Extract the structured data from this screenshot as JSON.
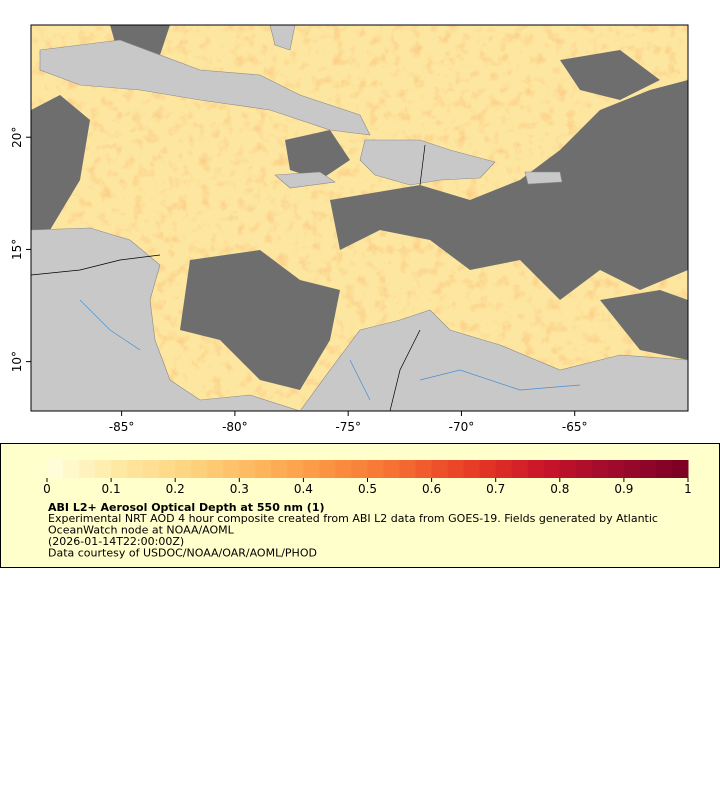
{
  "chart_data": {
    "type": "map",
    "xlim": [
      -89,
      -60
    ],
    "ylim": [
      7.8,
      25
    ],
    "xticks": [
      {
        "value": -85,
        "label": "-85°"
      },
      {
        "value": -80,
        "label": "-80°"
      },
      {
        "value": -75,
        "label": "-75°"
      },
      {
        "value": -70,
        "label": "-70°"
      },
      {
        "value": -65,
        "label": "-65°"
      }
    ],
    "yticks": [
      {
        "value": 10,
        "label": "10°"
      },
      {
        "value": 15,
        "label": "15°"
      },
      {
        "value": 20,
        "label": "20°"
      }
    ],
    "colorbar": {
      "lim": [
        0,
        1
      ],
      "ticks": [
        0,
        0.1,
        0.2,
        0.3,
        0.4,
        0.5,
        0.6,
        0.7,
        0.8,
        0.9,
        1
      ],
      "colors": [
        "#ffffe0",
        "#fee9a3",
        "#fdd480",
        "#fdb55c",
        "#fb9240",
        "#f46a32",
        "#e63a24",
        "#c8142a",
        "#9c0a2c",
        "#7a0024"
      ]
    },
    "legend": {
      "title": "ABI L2+ Aerosol Optical Depth at 550 nm (1)",
      "lines": [
        "Experimental NRT AOD 4 hour composite created from ABI L2 data from GOES-19. Fields generated by Atlantic",
        "OceanWatch node at NOAA/AOML",
        "(2026-01-14T22:00:00Z)",
        "Data courtesy of USDOC/NOAA/OAR/AOML/PHOD"
      ]
    }
  }
}
